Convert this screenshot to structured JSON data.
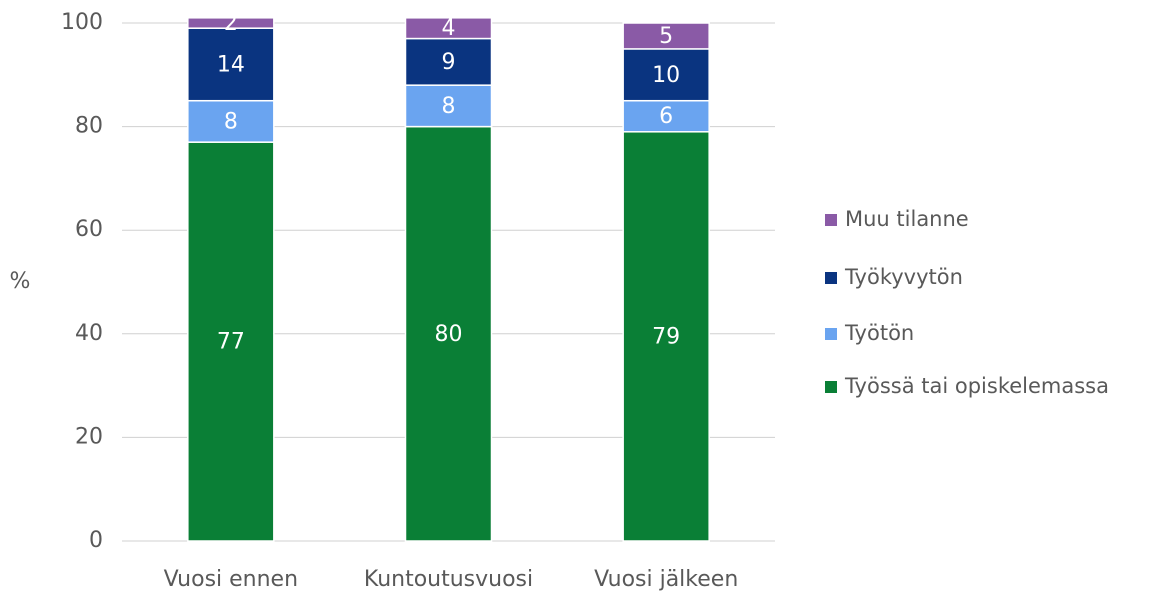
{
  "chart_data": {
    "type": "stacked_bar",
    "categories": [
      "Vuosi ennen",
      "Kuntoutusvuosi",
      "Vuosi jälkeen"
    ],
    "ylabel": "%",
    "series": [
      {
        "name": "Työssä tai opiskelemassa",
        "color": "#0a7f36",
        "values": [
          77,
          80,
          79
        ]
      },
      {
        "name": "Työtön",
        "color": "#6aa4f0",
        "values": [
          8,
          8,
          6
        ]
      },
      {
        "name": "Työkyvytön",
        "color": "#0a3480",
        "values": [
          14,
          9,
          10
        ]
      },
      {
        "name": "Muu tilanne",
        "color": "#8a5aa6",
        "values": [
          2,
          4,
          5
        ]
      }
    ],
    "ylim": [
      0,
      100
    ],
    "yticks": [
      0,
      20,
      40,
      60,
      80,
      100
    ],
    "grid": true,
    "legend": "right"
  }
}
